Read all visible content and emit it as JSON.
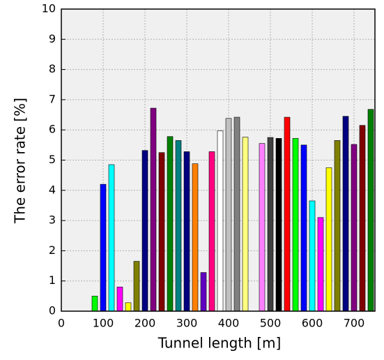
{
  "chart_data": {
    "type": "bar",
    "x_label": "Tunnel length [m]",
    "y_label": "The error rate [%]",
    "x": [
      80,
      100,
      120,
      140,
      160,
      180,
      200,
      220,
      240,
      260,
      280,
      300,
      320,
      340,
      360,
      380,
      400,
      420,
      440,
      480,
      500,
      520,
      540,
      560,
      580,
      600,
      620,
      640,
      660,
      680,
      700,
      720,
      740
    ],
    "values": [
      0.5,
      4.2,
      4.85,
      0.8,
      0.28,
      1.65,
      5.32,
      6.72,
      5.25,
      5.78,
      5.65,
      5.28,
      4.88,
      1.28,
      5.28,
      5.97,
      6.38,
      6.42,
      5.76,
      5.55,
      5.75,
      5.72,
      6.42,
      5.72,
      5.5,
      3.65,
      3.1,
      4.75,
      5.65,
      6.45,
      5.52,
      6.15,
      6.68
    ],
    "colors": [
      "#00ff00",
      "#0000ff",
      "#00ffff",
      "#ff00ff",
      "#ffff00",
      "#808000",
      "#000080",
      "#800080",
      "#800000",
      "#008000",
      "#008080",
      "#000080",
      "#ff8000",
      "#6000c0",
      "#ff0080",
      "#ffffff",
      "#c0c0c0",
      "#808080",
      "#ffff80",
      "#ff80ff",
      "#404040",
      "#000000",
      "#ff0000",
      "#00ff00",
      "#0000ff",
      "#00ffff",
      "#ff00ff",
      "#ffff00",
      "#808000",
      "#000080",
      "#800080",
      "#800000",
      "#008000"
    ],
    "xlim": [
      0,
      750
    ],
    "xticks": [
      0,
      100,
      200,
      300,
      400,
      500,
      600,
      700
    ],
    "ylim": [
      0,
      10
    ],
    "yticks": [
      0,
      1,
      2,
      3,
      4,
      5,
      6,
      7,
      8,
      9,
      10
    ],
    "grid": true
  }
}
